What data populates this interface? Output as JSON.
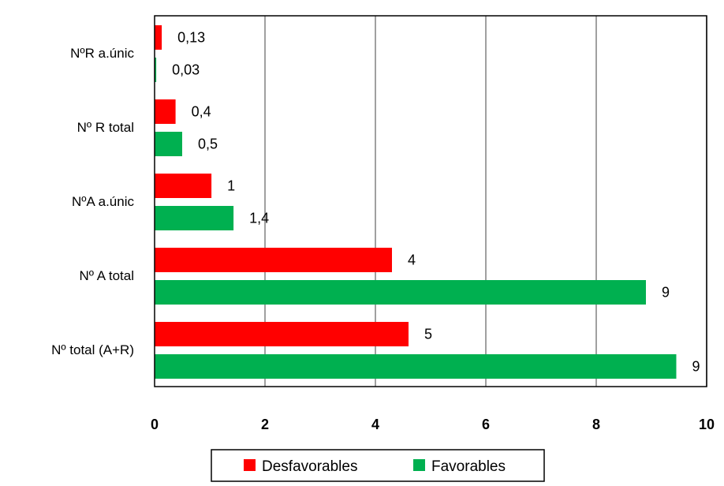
{
  "chart_data": {
    "type": "bar",
    "orientation": "horizontal",
    "categories": [
      "Nº total  (A+R)",
      "Nº A total",
      "ºA a.únic",
      "ºR  total",
      "ºR a.únic"
    ],
    "category_labels": [
      "Nº total  (A+R)",
      "Nº A total",
      "NºA a.únic",
      "Nº R  total",
      "NºR a.únic"
    ],
    "series": [
      {
        "name": "Desfavorables",
        "color": "#ff0000",
        "values": [
          4.6,
          4.3,
          1.03,
          0.38,
          0.13
        ],
        "labels": [
          "5",
          "4",
          "1",
          "0,4",
          "0,13"
        ]
      },
      {
        "name": "Favorables",
        "color": "#00b050",
        "values": [
          9.45,
          8.9,
          1.43,
          0.5,
          0.03
        ],
        "labels": [
          "9",
          "9",
          "1,4",
          "0,5",
          "0,03"
        ]
      }
    ],
    "xlim": [
      0,
      10
    ],
    "xticks": [
      0,
      2,
      4,
      6,
      8,
      10
    ],
    "xtick_labels": [
      "0",
      "2",
      "4",
      "6",
      "8",
      "10"
    ],
    "grid": "vertical",
    "legend": "bottom-center",
    "title": "",
    "xlabel": "",
    "ylabel": ""
  }
}
